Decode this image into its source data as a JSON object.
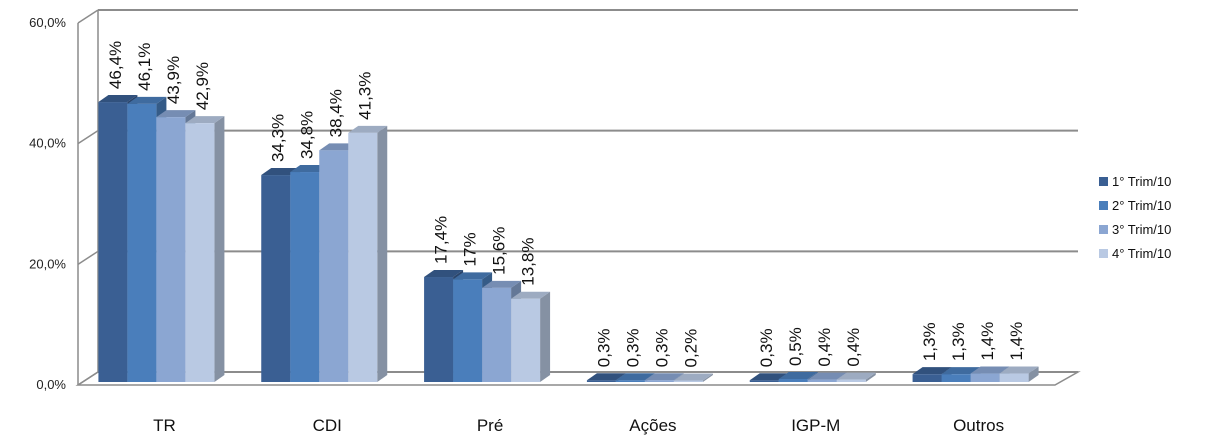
{
  "chart_data": {
    "type": "bar",
    "categories": [
      "TR",
      "CDI",
      "Pré",
      "Ações",
      "IGP-M",
      "Outros"
    ],
    "series": [
      {
        "name": "1° Trim/10",
        "values": [
          46.4,
          34.3,
          17.4,
          0.3,
          0.3,
          1.3
        ],
        "labels": [
          "46,4%",
          "34,3%",
          "17,4%",
          "0,3%",
          "0,3%",
          "1,3%"
        ],
        "color": "#3A5F93"
      },
      {
        "name": "2° Trim/10",
        "values": [
          46.1,
          34.8,
          17.0,
          0.3,
          0.5,
          1.3
        ],
        "labels": [
          "46,1%",
          "34,8%",
          "17%",
          "0,3%",
          "0,5%",
          "1,3%"
        ],
        "color": "#4A7EBB"
      },
      {
        "name": "3° Trim/10",
        "values": [
          43.9,
          38.4,
          15.6,
          0.3,
          0.4,
          1.4
        ],
        "labels": [
          "43,9%",
          "38,4%",
          "15,6%",
          "0,3%",
          "0,4%",
          "1,4%"
        ],
        "color": "#8BA6D2"
      },
      {
        "name": "4° Trim/10",
        "values": [
          42.9,
          41.3,
          13.8,
          0.2,
          0.4,
          1.4
        ],
        "labels": [
          "42,9%",
          "41,3%",
          "13,8%",
          "0,2%",
          "0,4%",
          "1,4%"
        ],
        "color": "#B9C9E3"
      }
    ],
    "yticks": [
      0,
      20,
      40,
      60
    ],
    "ytick_labels": [
      "0,0%",
      "20,0%",
      "40,0%",
      "60,0%"
    ],
    "ylim": [
      0,
      60
    ],
    "grid": true,
    "legend_position": "right",
    "style": "3d-clustered-column"
  }
}
